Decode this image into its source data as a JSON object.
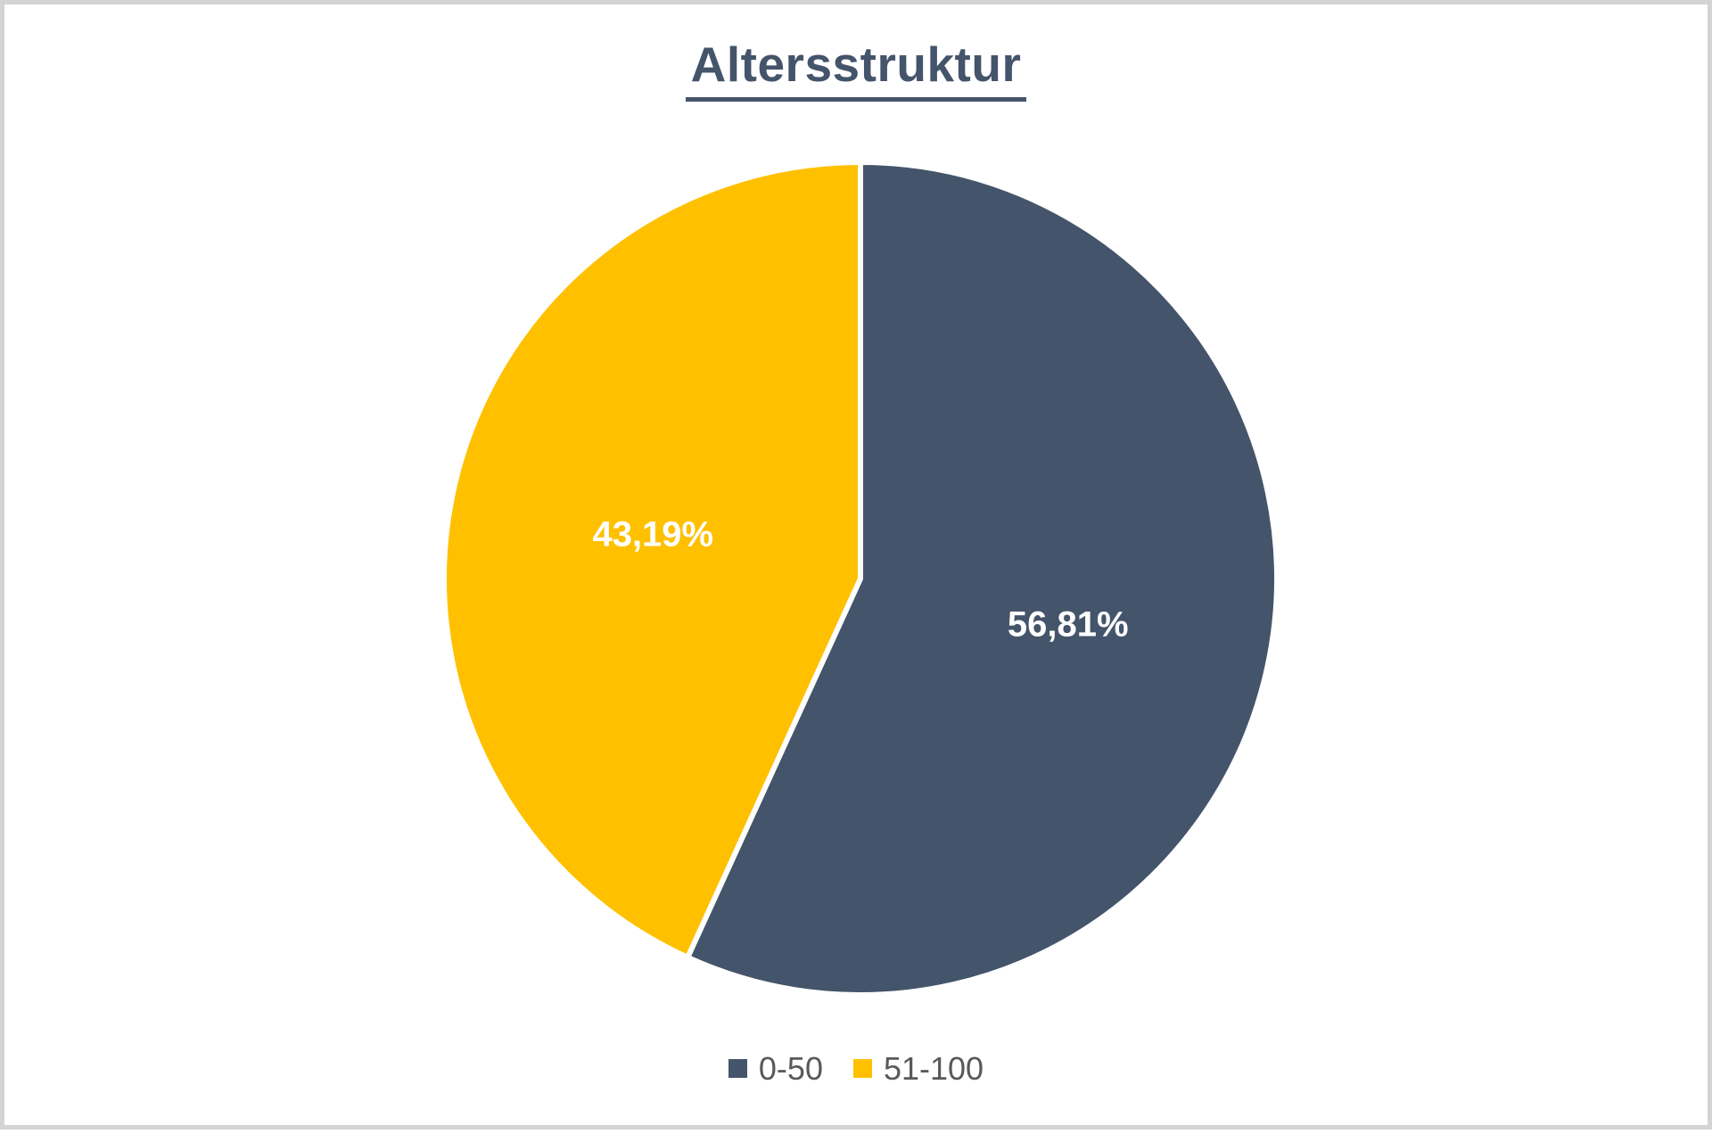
{
  "window": {
    "background": "#FFFFFF",
    "frame_border_color": "#D4D4D4"
  },
  "chart_data": {
    "type": "pie",
    "title": "Altersstruktur",
    "categories": [
      "0-50",
      "51-100"
    ],
    "values": [
      56.81,
      43.19
    ],
    "data_labels": [
      "56,81%",
      "43,19%"
    ],
    "colors": [
      "#44546A",
      "#FFC000"
    ],
    "slice_border_color": "#FFFFFF",
    "data_label_color": "#FFFFFF",
    "title_color": "#44546A",
    "legend_text_color": "#595959",
    "legend_position": "bottom",
    "start_angle_deg": 0,
    "direction": "clockwise",
    "grid": "off",
    "axes": "none"
  }
}
